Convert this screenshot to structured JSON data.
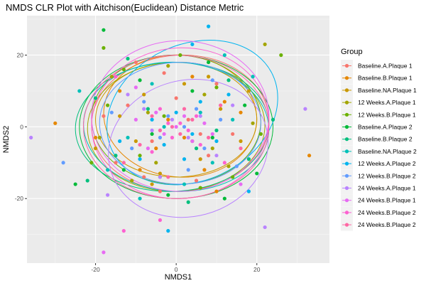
{
  "chart_data": {
    "type": "scatter",
    "title": "NMDS CLR Plot with Aitchison(Euclidean) Distance Metric",
    "xlabel": "NMDS1",
    "ylabel": "NMDS2",
    "xlim": [
      -37,
      38
    ],
    "ylim": [
      -38,
      31
    ],
    "xticks": [
      -20,
      0,
      20
    ],
    "yticks": [
      -20,
      0,
      20
    ],
    "grid": true,
    "legend_position": "right",
    "legend_title": "Group",
    "series": [
      {
        "name": "Baseline.A.Plaque 1",
        "color": "#F8766D",
        "points": [
          [
            -12,
            6
          ],
          [
            -6,
            -4
          ],
          [
            3,
            2
          ],
          [
            8,
            -8
          ],
          [
            -15,
            -10
          ],
          [
            10,
            12
          ],
          [
            -3,
            15
          ],
          [
            5,
            -15
          ],
          [
            -18,
            3
          ],
          [
            14,
            -2
          ],
          [
            -8,
            -14
          ],
          [
            0,
            8
          ],
          [
            -10,
            18
          ],
          [
            6,
            -2
          ],
          [
            -4,
            -18
          ]
        ],
        "ellipse": {
          "cx": 1,
          "cy": 1,
          "rx": 22,
          "ry": 19,
          "angle": 3
        }
      },
      {
        "name": "Baseline.B.Plaque 1",
        "color": "#E58700",
        "points": [
          [
            -30,
            1
          ],
          [
            -5,
            -6
          ],
          [
            12,
            7
          ],
          [
            7,
            -12
          ],
          [
            -14,
            10
          ],
          [
            2,
            -3
          ],
          [
            16,
            4
          ],
          [
            -9,
            -12
          ],
          [
            4,
            14
          ],
          [
            -2,
            2
          ],
          [
            33,
            -8
          ],
          [
            -20,
            -3
          ],
          [
            10,
            -18
          ]
        ],
        "ellipse": {
          "cx": 1,
          "cy": 3,
          "rx": 19,
          "ry": 17,
          "angle": -5
        }
      },
      {
        "name": "Baseline.NA.Plaque 1",
        "color": "#C99800",
        "points": [
          [
            -14,
            3
          ],
          [
            -8,
            9
          ],
          [
            6,
            -9
          ],
          [
            11,
            5
          ],
          [
            -4,
            -13
          ],
          [
            16,
            -4
          ],
          [
            -20,
            -6
          ],
          [
            2,
            12
          ],
          [
            -10,
            -4
          ],
          [
            8,
            14
          ],
          [
            -6,
            -16
          ],
          [
            18,
            10
          ]
        ],
        "ellipse": {
          "cx": 0,
          "cy": 2,
          "rx": 20,
          "ry": 16,
          "angle": 0
        }
      },
      {
        "name": "12 Weeks.A.Plaque 1",
        "color": "#A3A500",
        "points": [
          [
            -16,
            14
          ],
          [
            -5,
            -10
          ],
          [
            7,
            9
          ],
          [
            13,
            -11
          ],
          [
            -19,
            -3
          ],
          [
            19,
            1
          ],
          [
            -2,
            17
          ],
          [
            4,
            -4
          ],
          [
            -11,
            -15
          ],
          [
            9,
            -6
          ],
          [
            -7,
            4
          ],
          [
            22,
            23
          ]
        ],
        "ellipse": {
          "cx": 0,
          "cy": 0,
          "rx": 22,
          "ry": 18,
          "angle": 2
        }
      },
      {
        "name": "12 Weeks.B.Plaque 1",
        "color": "#6BB100",
        "points": [
          [
            -17,
            6
          ],
          [
            -9,
            -8
          ],
          [
            10,
            11
          ],
          [
            14,
            -14
          ],
          [
            -3,
            3
          ],
          [
            21,
            -2
          ],
          [
            -13,
            16
          ],
          [
            6,
            -17
          ],
          [
            -21,
            -10
          ],
          [
            1,
            20
          ],
          [
            -18,
            22
          ],
          [
            26,
            20
          ]
        ],
        "ellipse": {
          "cx": 0,
          "cy": 2,
          "rx": 21,
          "ry": 18,
          "angle": -2
        }
      },
      {
        "name": "Baseline.A.Plaque 2",
        "color": "#00BA38",
        "points": [
          [
            -18,
            27
          ],
          [
            -6,
            -2
          ],
          [
            9,
            -3
          ],
          [
            4,
            10
          ],
          [
            -13,
            -12
          ],
          [
            17,
            6
          ],
          [
            -2,
            -19
          ],
          [
            -25,
            -16
          ],
          [
            12,
            -20
          ],
          [
            -9,
            13
          ],
          [
            20,
            -13
          ],
          [
            8,
            18
          ]
        ],
        "ellipse": {
          "cx": 0,
          "cy": 0,
          "rx": 24,
          "ry": 20,
          "angle": 0
        }
      },
      {
        "name": "Baseline.B.Plaque 2",
        "color": "#00BF7D",
        "points": [
          [
            -7,
            5
          ],
          [
            5,
            -6
          ],
          [
            -15,
            -8
          ],
          [
            13,
            13
          ],
          [
            -4,
            -14
          ],
          [
            18,
            -9
          ],
          [
            -20,
            8
          ],
          [
            3,
            -21
          ],
          [
            -12,
            19
          ],
          [
            10,
            -1
          ],
          [
            24,
            2
          ],
          [
            -22,
            -15
          ]
        ],
        "ellipse": {
          "cx": -1,
          "cy": 0,
          "rx": 24,
          "ry": 18,
          "angle": 2
        }
      },
      {
        "name": "Baseline.NA.Plaque 2",
        "color": "#00C0B8",
        "points": [
          [
            -3,
            0
          ],
          [
            6,
            4
          ],
          [
            -12,
            -3
          ],
          [
            9,
            -10
          ],
          [
            -6,
            12
          ],
          [
            14,
            2
          ],
          [
            -17,
            -12
          ],
          [
            2,
            -16
          ],
          [
            19,
            14
          ],
          [
            -9,
            -20
          ],
          [
            12,
            20
          ],
          [
            -24,
            10
          ]
        ],
        "ellipse": {
          "cx": 0,
          "cy": 0,
          "rx": 23,
          "ry": 18,
          "angle": -3
        }
      },
      {
        "name": "12 Weeks.A.Plaque 2",
        "color": "#00B4EF",
        "points": [
          [
            0,
            4
          ],
          [
            4,
            -2
          ],
          [
            -3,
            -5
          ],
          [
            6,
            7
          ],
          [
            -6,
            2
          ],
          [
            10,
            -4
          ],
          [
            2,
            -9
          ],
          [
            -9,
            -9
          ],
          [
            13,
            9
          ],
          [
            8,
            28
          ],
          [
            -2,
            -29
          ],
          [
            4,
            23
          ],
          [
            -14,
            -4
          ],
          [
            18,
            -18
          ]
        ],
        "ellipse": {
          "cx": 4,
          "cy": 4,
          "rx": 22,
          "ry": 19,
          "angle": 25
        }
      },
      {
        "name": "12 Weeks.B.Plaque 2",
        "color": "#619CFF",
        "points": [
          [
            2,
            0
          ],
          [
            -2,
            3
          ],
          [
            5,
            5
          ],
          [
            -4,
            -3
          ],
          [
            7,
            -6
          ],
          [
            -8,
            7
          ],
          [
            11,
            2
          ],
          [
            -11,
            -6
          ],
          [
            3,
            -12
          ],
          [
            15,
            -11
          ],
          [
            -16,
            4
          ],
          [
            -28,
            -10
          ],
          [
            9,
            13
          ]
        ],
        "ellipse": {
          "cx": 1,
          "cy": 1,
          "rx": 20,
          "ry": 17,
          "angle": 0
        }
      },
      {
        "name": "24 Weeks.A.Plaque 1",
        "color": "#B983FF",
        "points": [
          [
            -1,
            2
          ],
          [
            3,
            -3
          ],
          [
            -6,
            -1
          ],
          [
            6,
            3
          ],
          [
            -8,
            5
          ],
          [
            10,
            -8
          ],
          [
            -12,
            9
          ],
          [
            14,
            6
          ],
          [
            -36,
            -3
          ],
          [
            32,
            5
          ],
          [
            22,
            -28
          ],
          [
            -4,
            -14
          ],
          [
            -17,
            -19
          ]
        ],
        "ellipse": {
          "cx": 3,
          "cy": -6,
          "rx": 20,
          "ry": 19,
          "angle": 15
        }
      },
      {
        "name": "24 Weeks.B.Plaque 1",
        "color": "#E76BF3",
        "points": [
          [
            0,
            0
          ],
          [
            2,
            3
          ],
          [
            -3,
            -2
          ],
          [
            4,
            -4
          ],
          [
            -5,
            4
          ],
          [
            7,
            1
          ],
          [
            -7,
            -6
          ],
          [
            9,
            -2
          ],
          [
            -10,
            2
          ],
          [
            -18,
            -35
          ],
          [
            -10,
            11
          ],
          [
            16,
            -16
          ]
        ],
        "ellipse": {
          "cx": 1,
          "cy": 3,
          "rx": 22,
          "ry": 21,
          "angle": 0
        }
      },
      {
        "name": "24 Weeks.B.Plaque 2",
        "color": "#FD61D1",
        "points": [
          [
            1,
            1
          ],
          [
            -2,
            1
          ],
          [
            3,
            -1
          ],
          [
            -1,
            -3
          ],
          [
            5,
            3
          ],
          [
            -4,
            5
          ],
          [
            6,
            -5
          ],
          [
            -6,
            -7
          ],
          [
            -13,
            -29
          ],
          [
            -4,
            -26
          ],
          [
            12,
            -10
          ],
          [
            -15,
            14
          ]
        ],
        "ellipse": {
          "cx": 1,
          "cy": 1,
          "rx": 22,
          "ry": 21,
          "angle": 5
        }
      },
      {
        "name": "24 Weeks.B.Plaque 2",
        "color": "#FF67A4",
        "points": [
          [
            -1,
            0
          ],
          [
            1,
            -2
          ],
          [
            4,
            2
          ],
          [
            -4,
            -1
          ],
          [
            2,
            5
          ],
          [
            -6,
            3
          ],
          [
            8,
            -3
          ],
          [
            -9,
            -5
          ],
          [
            11,
            6
          ],
          [
            -13,
            -10
          ],
          [
            16,
            -6
          ],
          [
            -2,
            -14
          ]
        ],
        "ellipse": {
          "cx": 0,
          "cy": 0,
          "rx": 23,
          "ry": 20,
          "angle": 0
        }
      }
    ]
  }
}
